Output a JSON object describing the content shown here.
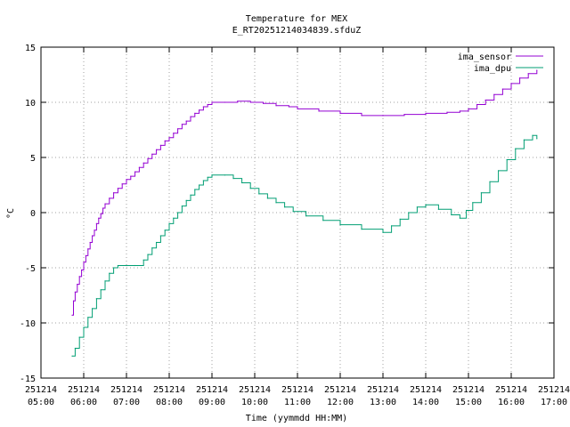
{
  "chart_data": {
    "type": "line",
    "title": "Temperature for MEX",
    "subtitle": "E_RT20251214034839.sfduZ",
    "xlabel": "Time (yymmdd HH:MM)",
    "ylabel": "°C",
    "ylim": [
      -15,
      15
    ],
    "xlim": [
      5.0,
      17.0
    ],
    "y_ticks": [
      -15,
      -10,
      -5,
      0,
      5,
      10,
      15
    ],
    "x_ticks": [
      {
        "value": 5,
        "date": "251214",
        "time": "05:00"
      },
      {
        "value": 6,
        "date": "251214",
        "time": "06:00"
      },
      {
        "value": 7,
        "date": "251214",
        "time": "07:00"
      },
      {
        "value": 8,
        "date": "251214",
        "time": "08:00"
      },
      {
        "value": 9,
        "date": "251214",
        "time": "09:00"
      },
      {
        "value": 10,
        "date": "251214",
        "time": "10:00"
      },
      {
        "value": 11,
        "date": "251214",
        "time": "11:00"
      },
      {
        "value": 12,
        "date": "251214",
        "time": "12:00"
      },
      {
        "value": 13,
        "date": "251214",
        "time": "13:00"
      },
      {
        "value": 14,
        "date": "251214",
        "time": "14:00"
      },
      {
        "value": 15,
        "date": "251214",
        "time": "15:00"
      },
      {
        "value": 16,
        "date": "251214",
        "time": "16:00"
      },
      {
        "value": 17,
        "date": "251214",
        "time": "17:00"
      }
    ],
    "grid": true,
    "legend_position": "top-right",
    "series": [
      {
        "name": "ima_sensor",
        "color": "#9400d3",
        "points": [
          [
            5.73,
            -9.3
          ],
          [
            5.76,
            -8.0
          ],
          [
            5.8,
            -7.2
          ],
          [
            5.85,
            -6.5
          ],
          [
            5.9,
            -5.8
          ],
          [
            5.95,
            -5.2
          ],
          [
            6.0,
            -4.5
          ],
          [
            6.05,
            -3.9
          ],
          [
            6.1,
            -3.3
          ],
          [
            6.15,
            -2.7
          ],
          [
            6.2,
            -2.1
          ],
          [
            6.25,
            -1.6
          ],
          [
            6.3,
            -1.0
          ],
          [
            6.35,
            -0.5
          ],
          [
            6.4,
            -0.1
          ],
          [
            6.45,
            0.4
          ],
          [
            6.5,
            0.8
          ],
          [
            6.6,
            1.3
          ],
          [
            6.7,
            1.8
          ],
          [
            6.8,
            2.2
          ],
          [
            6.9,
            2.6
          ],
          [
            7.0,
            3.0
          ],
          [
            7.1,
            3.3
          ],
          [
            7.2,
            3.7
          ],
          [
            7.3,
            4.1
          ],
          [
            7.4,
            4.5
          ],
          [
            7.5,
            4.9
          ],
          [
            7.6,
            5.3
          ],
          [
            7.7,
            5.7
          ],
          [
            7.8,
            6.1
          ],
          [
            7.9,
            6.5
          ],
          [
            8.0,
            6.8
          ],
          [
            8.1,
            7.2
          ],
          [
            8.2,
            7.6
          ],
          [
            8.3,
            8.0
          ],
          [
            8.4,
            8.3
          ],
          [
            8.5,
            8.7
          ],
          [
            8.6,
            9.0
          ],
          [
            8.7,
            9.3
          ],
          [
            8.8,
            9.6
          ],
          [
            8.9,
            9.8
          ],
          [
            9.0,
            10.0
          ],
          [
            9.3,
            10.0
          ],
          [
            9.6,
            10.1
          ],
          [
            9.9,
            10.0
          ],
          [
            10.2,
            9.9
          ],
          [
            10.5,
            9.7
          ],
          [
            10.8,
            9.6
          ],
          [
            11.0,
            9.4
          ],
          [
            11.5,
            9.2
          ],
          [
            12.0,
            9.0
          ],
          [
            12.5,
            8.8
          ],
          [
            13.0,
            8.8
          ],
          [
            13.5,
            8.9
          ],
          [
            14.0,
            9.0
          ],
          [
            14.5,
            9.1
          ],
          [
            14.8,
            9.2
          ],
          [
            15.0,
            9.4
          ],
          [
            15.2,
            9.8
          ],
          [
            15.4,
            10.2
          ],
          [
            15.6,
            10.7
          ],
          [
            15.8,
            11.2
          ],
          [
            16.0,
            11.7
          ],
          [
            16.2,
            12.2
          ],
          [
            16.4,
            12.6
          ],
          [
            16.6,
            12.9
          ]
        ]
      },
      {
        "name": "ima_dpu",
        "color": "#009e73",
        "points": [
          [
            5.73,
            -13.0
          ],
          [
            5.8,
            -12.3
          ],
          [
            5.9,
            -11.3
          ],
          [
            6.0,
            -10.4
          ],
          [
            6.1,
            -9.5
          ],
          [
            6.2,
            -8.7
          ],
          [
            6.3,
            -7.8
          ],
          [
            6.4,
            -7.0
          ],
          [
            6.5,
            -6.2
          ],
          [
            6.6,
            -5.5
          ],
          [
            6.7,
            -5.0
          ],
          [
            6.8,
            -4.8
          ],
          [
            7.0,
            -4.8
          ],
          [
            7.2,
            -4.8
          ],
          [
            7.4,
            -4.3
          ],
          [
            7.5,
            -3.8
          ],
          [
            7.6,
            -3.2
          ],
          [
            7.7,
            -2.7
          ],
          [
            7.8,
            -2.1
          ],
          [
            7.9,
            -1.6
          ],
          [
            8.0,
            -1.0
          ],
          [
            8.1,
            -0.5
          ],
          [
            8.2,
            0.0
          ],
          [
            8.3,
            0.6
          ],
          [
            8.4,
            1.1
          ],
          [
            8.5,
            1.6
          ],
          [
            8.6,
            2.1
          ],
          [
            8.7,
            2.5
          ],
          [
            8.8,
            2.9
          ],
          [
            8.9,
            3.2
          ],
          [
            9.0,
            3.4
          ],
          [
            9.3,
            3.4
          ],
          [
            9.5,
            3.1
          ],
          [
            9.7,
            2.7
          ],
          [
            9.9,
            2.2
          ],
          [
            10.1,
            1.7
          ],
          [
            10.3,
            1.3
          ],
          [
            10.5,
            0.9
          ],
          [
            10.7,
            0.5
          ],
          [
            10.9,
            0.1
          ],
          [
            11.2,
            -0.3
          ],
          [
            11.6,
            -0.7
          ],
          [
            12.0,
            -1.1
          ],
          [
            12.5,
            -1.5
          ],
          [
            13.0,
            -1.8
          ],
          [
            13.2,
            -1.2
          ],
          [
            13.4,
            -0.6
          ],
          [
            13.6,
            0.0
          ],
          [
            13.8,
            0.5
          ],
          [
            14.0,
            0.7
          ],
          [
            14.3,
            0.3
          ],
          [
            14.6,
            -0.2
          ],
          [
            14.8,
            -0.5
          ],
          [
            14.95,
            0.2
          ],
          [
            15.1,
            0.9
          ],
          [
            15.3,
            1.8
          ],
          [
            15.5,
            2.8
          ],
          [
            15.7,
            3.8
          ],
          [
            15.9,
            4.8
          ],
          [
            16.1,
            5.8
          ],
          [
            16.3,
            6.6
          ],
          [
            16.5,
            7.0
          ],
          [
            16.6,
            6.7
          ]
        ]
      }
    ]
  }
}
